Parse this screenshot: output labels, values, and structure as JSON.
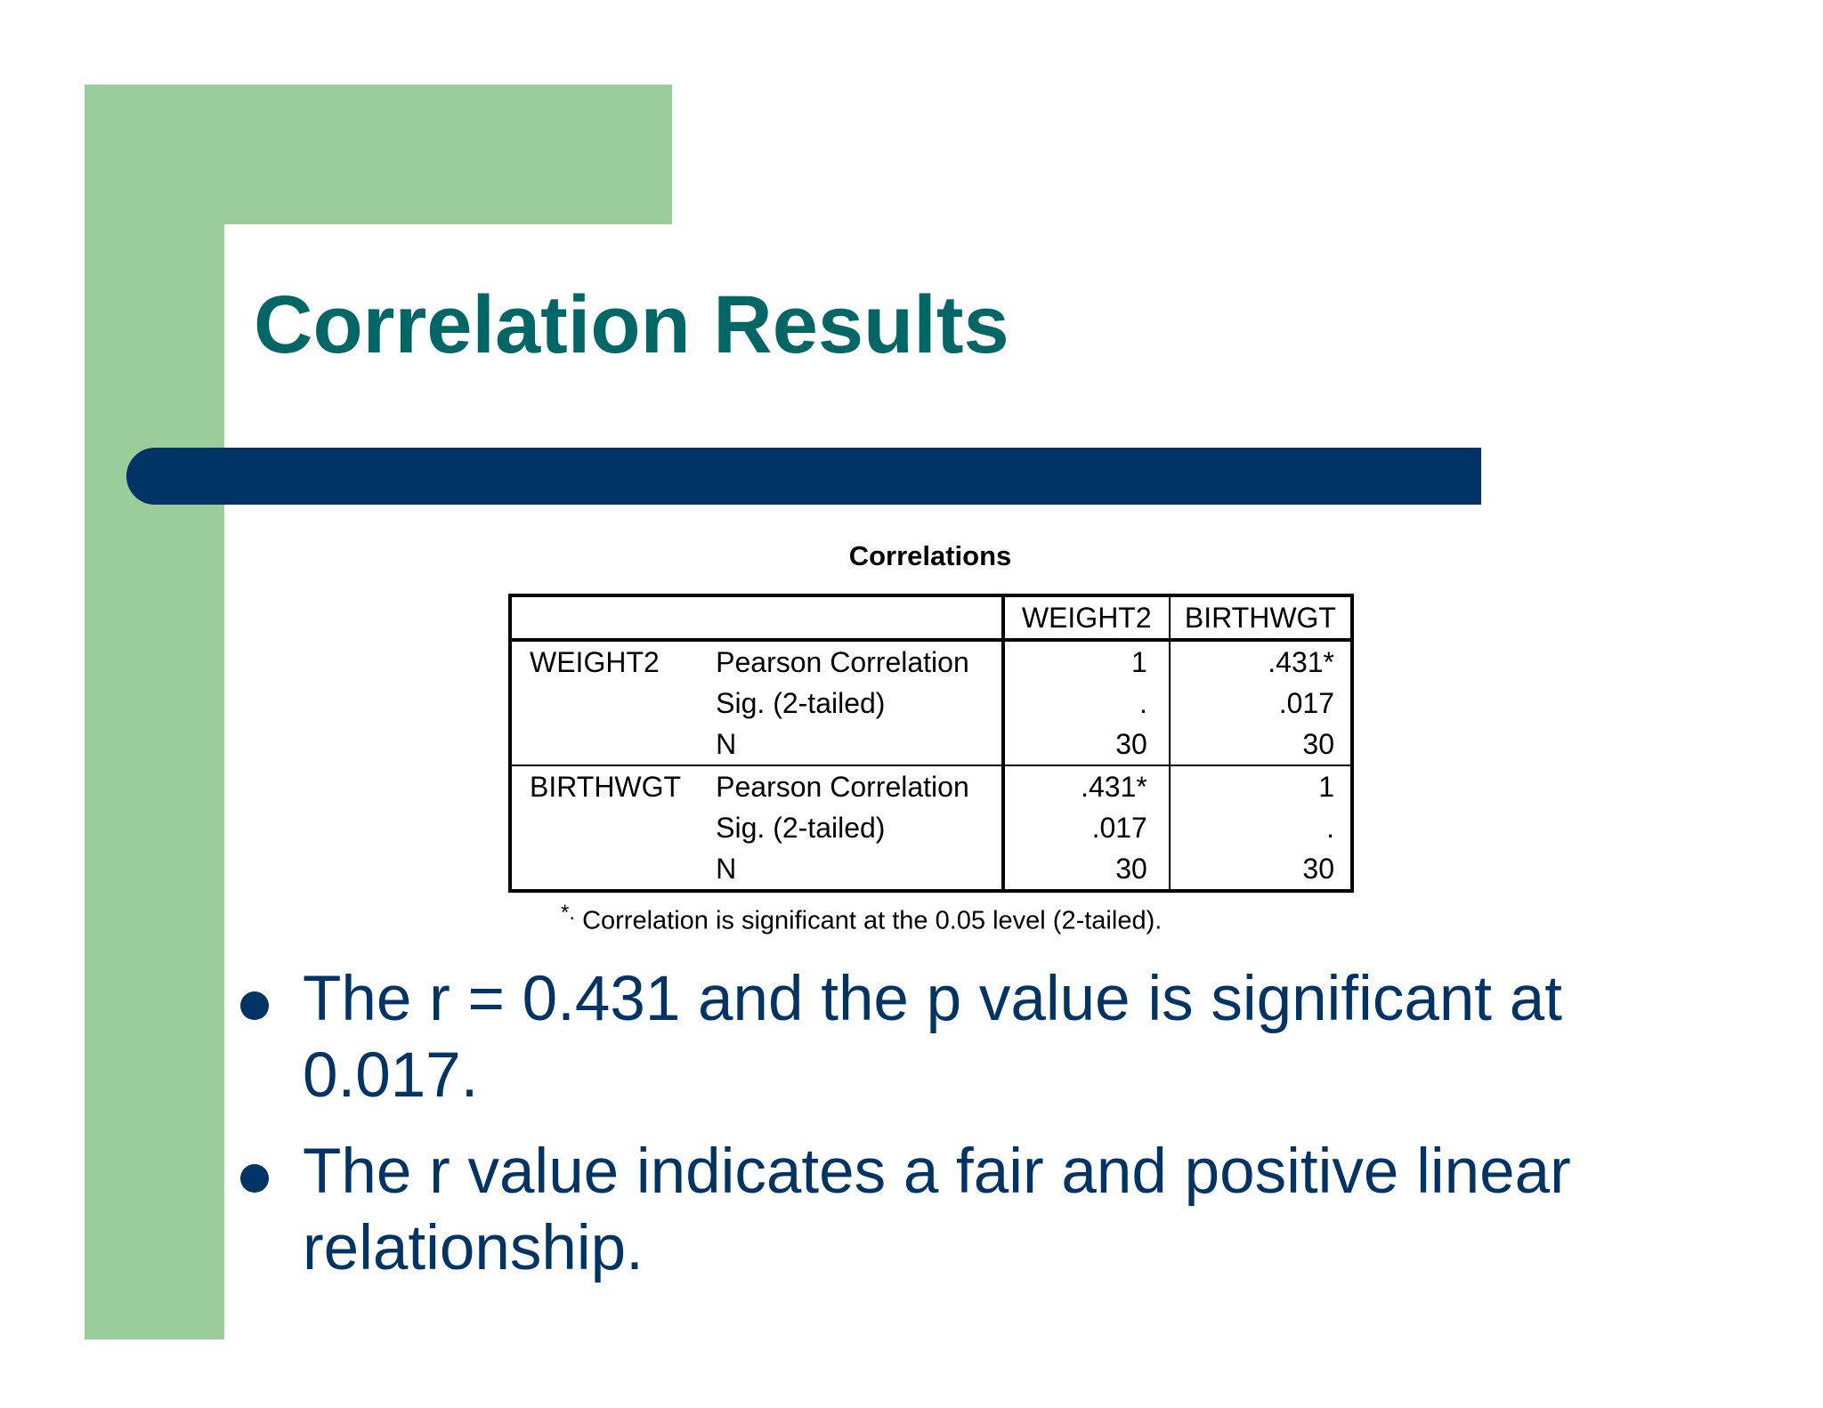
{
  "slide": {
    "title": "Correlation Results",
    "colors": {
      "accent_green": "#9bcd9b",
      "title_teal": "#006666",
      "navy": "#003366"
    }
  },
  "table": {
    "caption": "Correlations",
    "columns": [
      "",
      "",
      "WEIGHT2",
      "BIRTHWGT"
    ],
    "rows": [
      {
        "var": "WEIGHT2",
        "stat": "Pearson Correlation",
        "weight2": "1",
        "birthwgt": ".431*"
      },
      {
        "var": "",
        "stat": "Sig. (2-tailed)",
        "weight2": ".",
        "birthwgt": ".017"
      },
      {
        "var": "",
        "stat": "N",
        "weight2": "30",
        "birthwgt": "30"
      },
      {
        "var": "BIRTHWGT",
        "stat": "Pearson Correlation",
        "weight2": ".431*",
        "birthwgt": "1"
      },
      {
        "var": "",
        "stat": "Sig. (2-tailed)",
        "weight2": ".017",
        "birthwgt": "."
      },
      {
        "var": "",
        "stat": "N",
        "weight2": "30",
        "birthwgt": "30"
      }
    ],
    "footnote_mark": "*.",
    "footnote": "Correlation is significant at the 0.05 level (2-tailed)."
  },
  "bullets": [
    "The r = 0.431 and the p value is significant at 0.017.",
    "The r value indicates a fair and positive linear relationship."
  ]
}
